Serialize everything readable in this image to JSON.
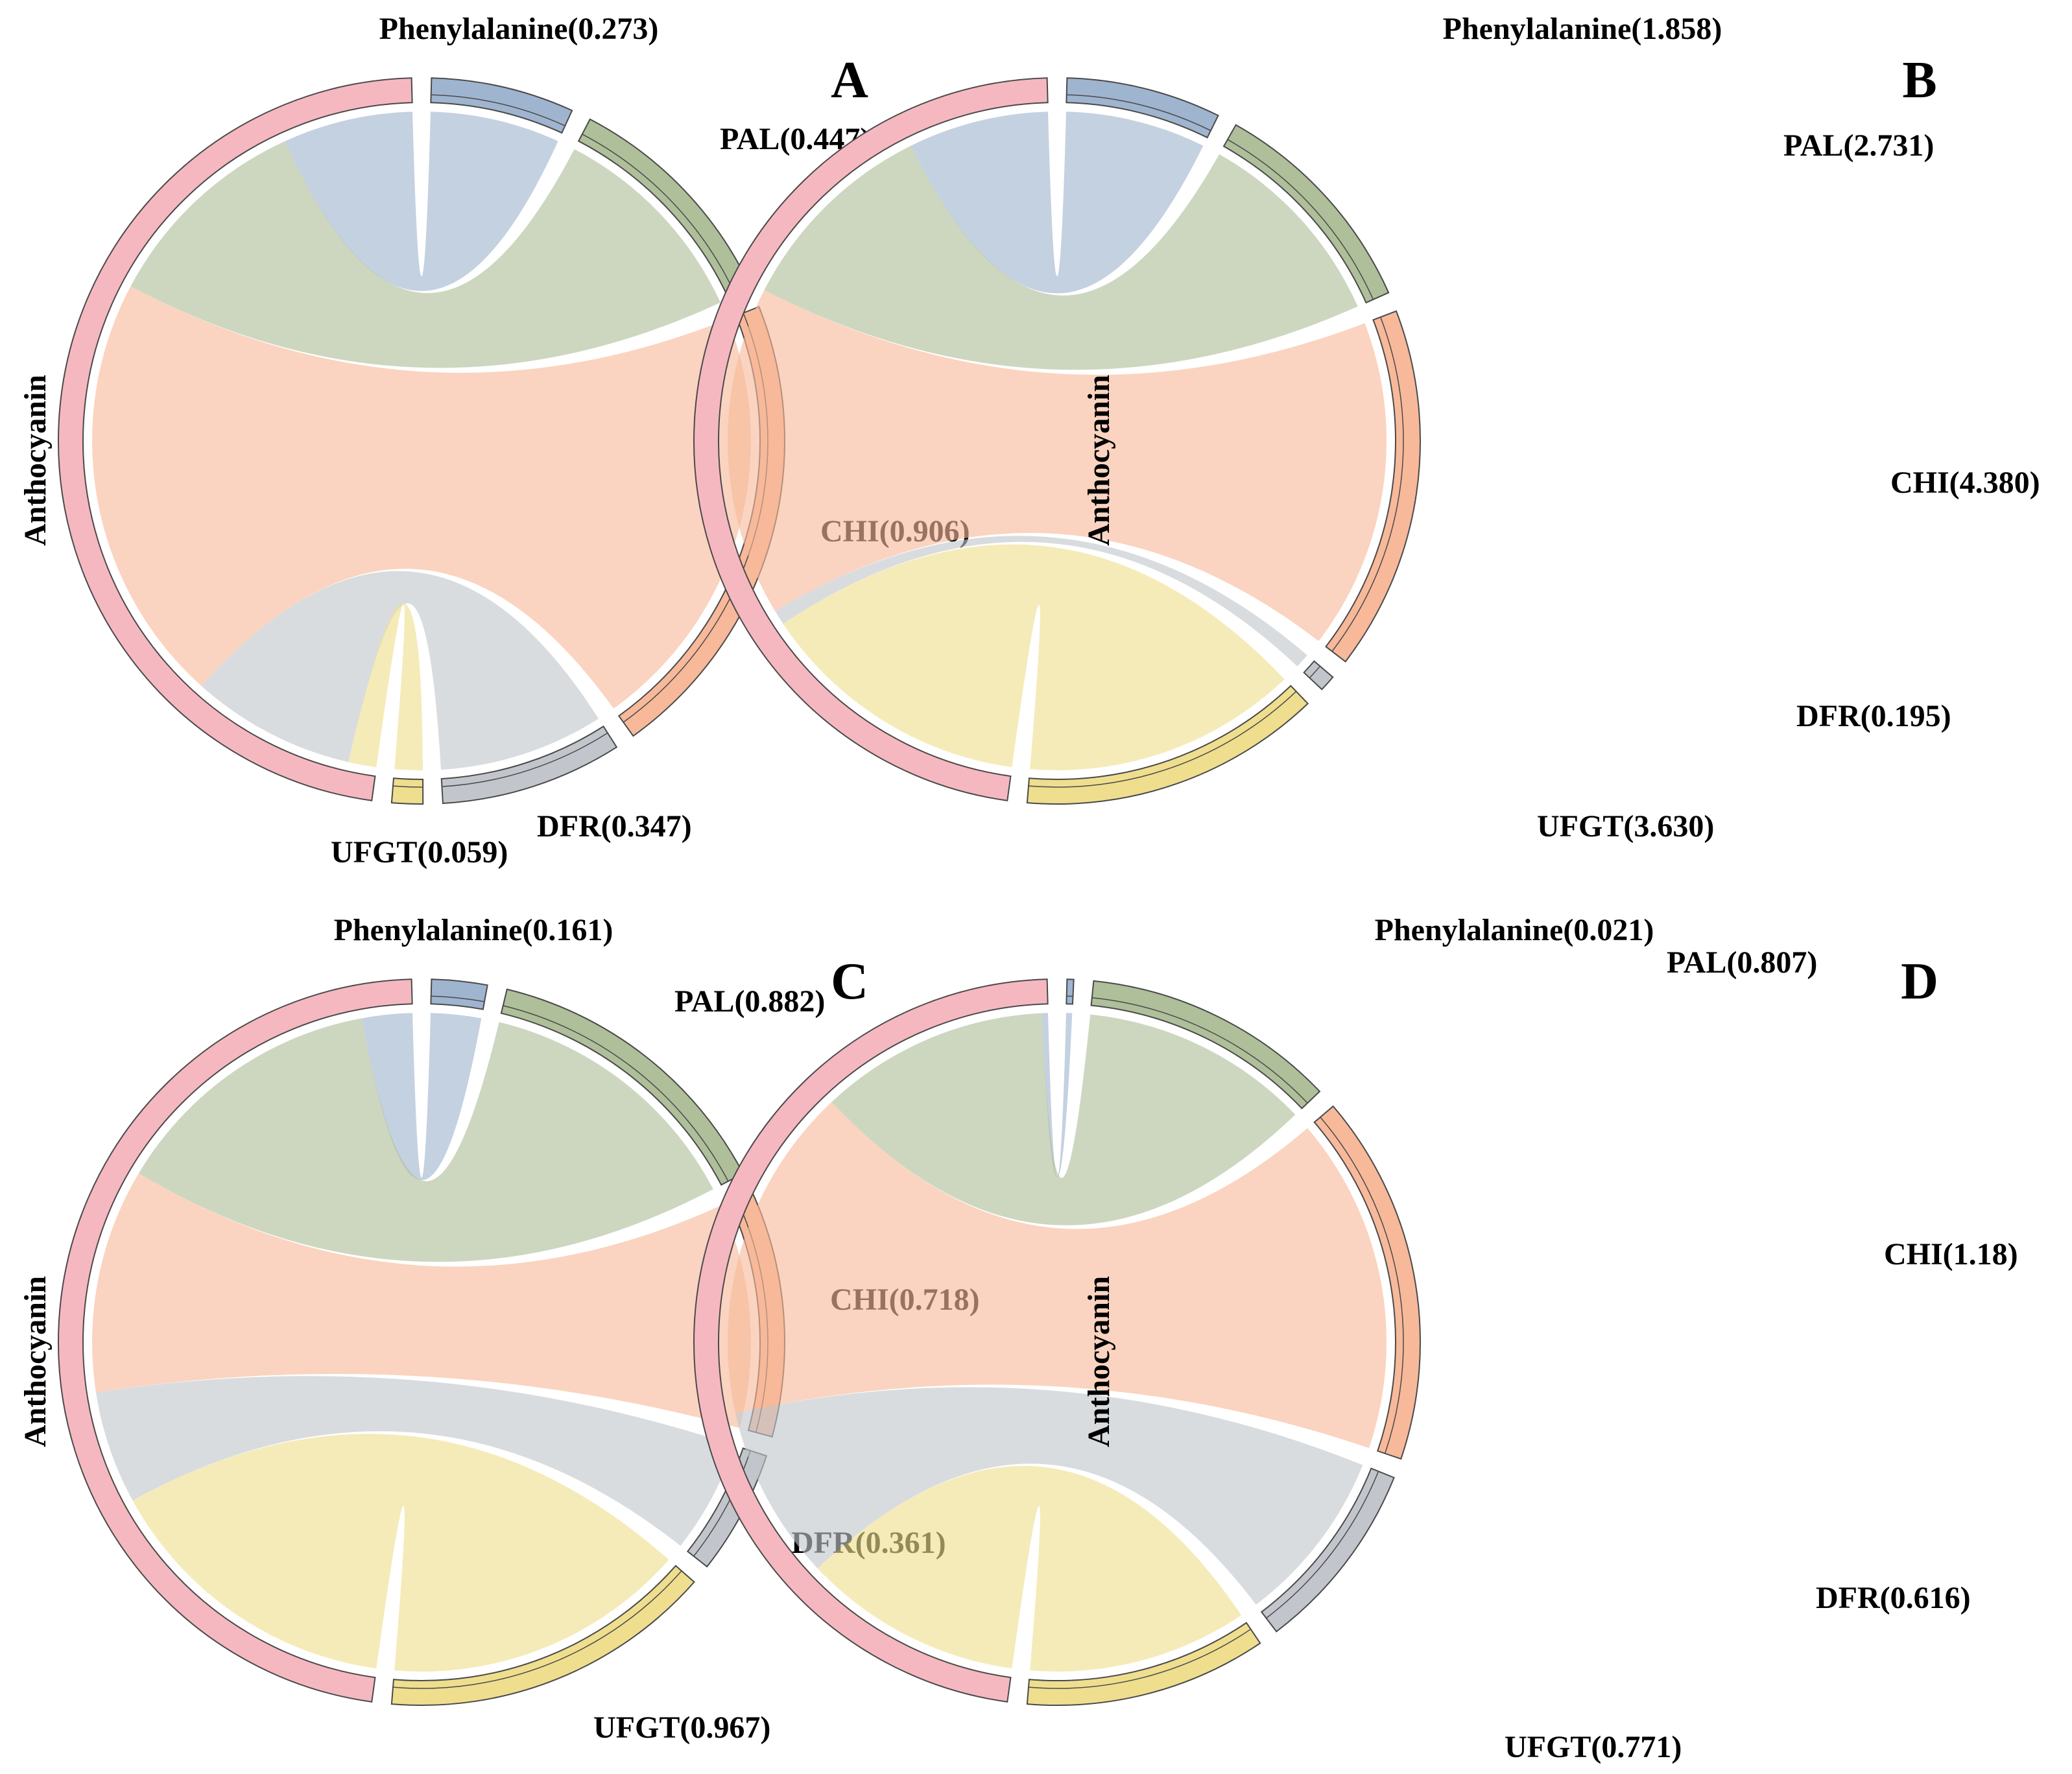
{
  "chart_data": [
    {
      "type": "chord",
      "panel": "A",
      "target": "Anthocyanin",
      "nodes": [
        {
          "name": "Phenylalanine",
          "value": 0.273,
          "label": "Phenylalanine(0.273)"
        },
        {
          "name": "PAL",
          "value": 0.447,
          "label": "PAL(0.447)"
        },
        {
          "name": "CHI",
          "value": 0.906,
          "label": "CHI(0.906)"
        },
        {
          "name": "DFR",
          "value": 0.347,
          "label": "DFR(0.347)"
        },
        {
          "name": "UFGT",
          "value": 0.059,
          "label": "UFGT(0.059)"
        }
      ]
    },
    {
      "type": "chord",
      "panel": "B",
      "target": "Anthocyanin",
      "nodes": [
        {
          "name": "Phenylalanine",
          "value": 1.858,
          "label": "Phenylalanine(1.858)"
        },
        {
          "name": "PAL",
          "value": 2.731,
          "label": "PAL(2.731)"
        },
        {
          "name": "CHI",
          "value": 4.38,
          "label": "CHI(4.380)"
        },
        {
          "name": "DFR",
          "value": 0.195,
          "label": "DFR(0.195)"
        },
        {
          "name": "UFGT",
          "value": 3.63,
          "label": "UFGT(3.630)"
        }
      ]
    },
    {
      "type": "chord",
      "panel": "C",
      "target": "Anthocyanin",
      "nodes": [
        {
          "name": "Phenylalanine",
          "value": 0.161,
          "label": "Phenylalanine(0.161)"
        },
        {
          "name": "PAL",
          "value": 0.882,
          "label": "PAL(0.882)"
        },
        {
          "name": "CHI",
          "value": 0.718,
          "label": "CHI(0.718)"
        },
        {
          "name": "DFR",
          "value": 0.361,
          "label": "DFR(0.361)"
        },
        {
          "name": "UFGT",
          "value": 0.967,
          "label": "UFGT(0.967)"
        }
      ]
    },
    {
      "type": "chord",
      "panel": "D",
      "target": "Anthocyanin",
      "nodes": [
        {
          "name": "Phenylalanine",
          "value": 0.021,
          "label": "Phenylalanine(0.021)"
        },
        {
          "name": "PAL",
          "value": 0.807,
          "label": "PAL(0.807)"
        },
        {
          "name": "CHI",
          "value": 1.18,
          "label": "CHI(1.18)"
        },
        {
          "name": "DFR",
          "value": 0.616,
          "label": "DFR(0.616)"
        },
        {
          "name": "UFGT",
          "value": 0.771,
          "label": "UFGT(0.771)"
        }
      ]
    }
  ],
  "colors": {
    "Phenylalanine": "#9fb4cf",
    "PAL": "#aebf9a",
    "CHI": "#f7b99a",
    "DFR": "#c2c6cc",
    "UFGT": "#efde8e",
    "Anthocyanin": "#f6b8c0"
  }
}
